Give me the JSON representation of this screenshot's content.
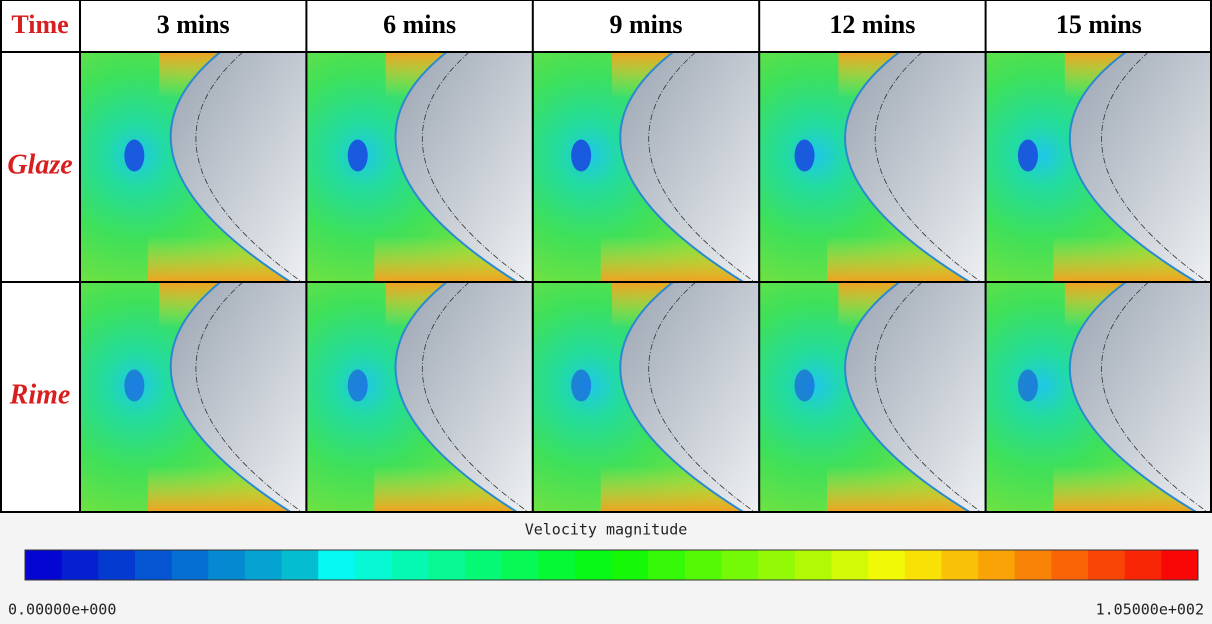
{
  "header": {
    "corner": "Time",
    "columns": [
      "3 mins",
      "6 mins",
      "9 mins",
      "12 mins",
      "15 mins"
    ]
  },
  "rows": [
    "Glaze",
    "Rime"
  ],
  "colorbar": {
    "title": "Velocity magnitude",
    "min_label": "0.00000e+000",
    "max_label": "1.05000e+002"
  }
}
